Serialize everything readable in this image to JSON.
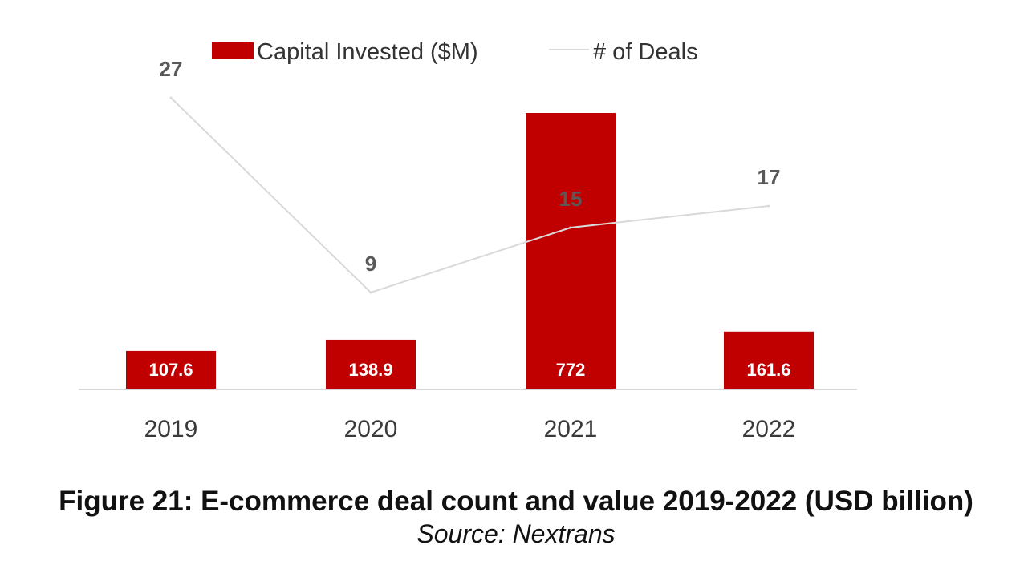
{
  "chart_data": {
    "type": "bar",
    "categories": [
      "2019",
      "2020",
      "2021",
      "2022"
    ],
    "series": [
      {
        "name": "Capital Invested ($M)",
        "type": "bar",
        "values": [
          107.6,
          138.9,
          772,
          161.6
        ],
        "labels": [
          "107.6",
          "138.9",
          "772",
          "161.6"
        ],
        "color": "#c00000"
      },
      {
        "name": "# of Deals",
        "type": "line",
        "values": [
          27,
          9,
          15,
          17
        ],
        "labels": [
          "27",
          "9",
          "15",
          "17"
        ],
        "color": "#d9d9d9"
      }
    ],
    "bar_ylim": [
      0,
      800
    ],
    "line_ylim": [
      0,
      30
    ],
    "legend_position": "top",
    "grid": false
  },
  "caption": {
    "title": "Figure 21: E-commerce deal count and value 2019-2022 (USD billion)",
    "source": "Source: Nextrans"
  }
}
